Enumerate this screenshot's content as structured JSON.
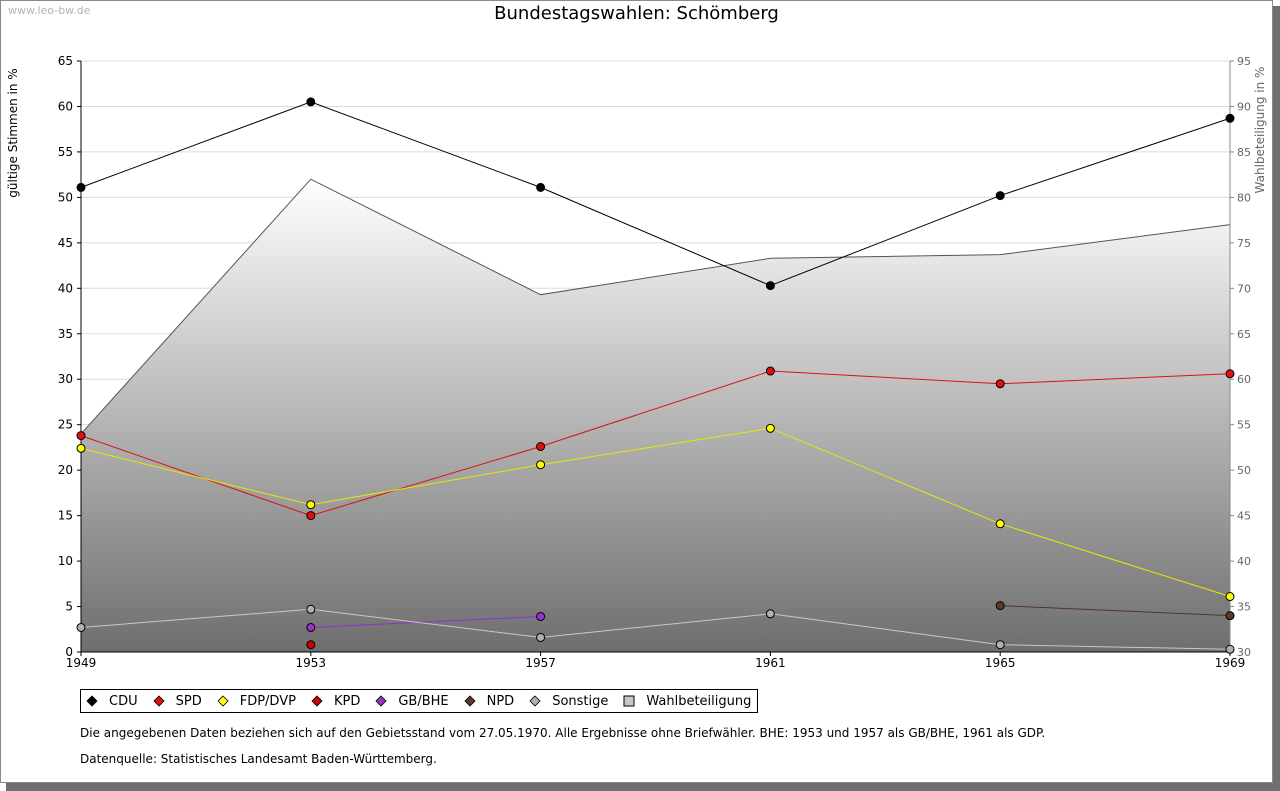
{
  "watermark": "www.leo-bw.de",
  "chart_data": {
    "type": "line",
    "title": "Bundestagswahlen: Schömberg",
    "ylabel": "gültige Stimmen in %",
    "y2label": "Wahlbeteiligung in %",
    "x": [
      "1949",
      "1953",
      "1957",
      "1961",
      "1965",
      "1969"
    ],
    "ylim": [
      0,
      65
    ],
    "yticks": [
      0,
      5,
      10,
      15,
      20,
      25,
      30,
      35,
      40,
      45,
      50,
      55,
      60,
      65
    ],
    "y2lim": [
      30,
      95
    ],
    "y2ticks": [
      30,
      35,
      40,
      45,
      50,
      55,
      60,
      65,
      70,
      75,
      80,
      85,
      90,
      95
    ],
    "series": [
      {
        "name": "CDU",
        "color": "#000000",
        "marker": "#000000",
        "values": [
          51.1,
          60.5,
          51.1,
          40.3,
          50.2,
          58.7
        ]
      },
      {
        "name": "SPD",
        "color": "#dd1111",
        "marker": "#dd1111",
        "values": [
          23.8,
          15.0,
          22.6,
          30.9,
          29.5,
          30.6
        ]
      },
      {
        "name": "FDP/DVP",
        "color": "#e8e800",
        "marker": "#ffff00",
        "values": [
          22.4,
          16.2,
          20.6,
          24.6,
          14.1,
          6.1
        ]
      },
      {
        "name": "KPD",
        "color": "#cc0000",
        "marker": "#cc0000",
        "values": [
          null,
          0.8,
          null,
          null,
          null,
          null
        ]
      },
      {
        "name": "GB/BHE",
        "color": "#8833cc",
        "marker": "#9933cc",
        "values": [
          null,
          2.7,
          3.9,
          null,
          null,
          null
        ]
      },
      {
        "name": "NPD",
        "color": "#553322",
        "marker": "#5a3a2a",
        "values": [
          null,
          null,
          null,
          null,
          5.1,
          4.0
        ]
      },
      {
        "name": "Sonstige",
        "color": "#c8c8c8",
        "marker": "#b0b0b0",
        "values": [
          2.7,
          4.7,
          1.6,
          4.2,
          0.8,
          0.3
        ]
      }
    ],
    "turnout": {
      "name": "Wahlbeteiligung",
      "values": [
        54.0,
        82.0,
        69.3,
        73.3,
        73.7,
        77.0
      ]
    }
  },
  "notes": [
    "Die angegebenen Daten beziehen sich auf den Gebietsstand vom 27.05.1970. Alle Ergebnisse ohne Briefwähler. BHE: 1953 und 1957 als GB/BHE, 1961 als GDP.",
    "Datenquelle: Statistisches Landesamt Baden-Württemberg."
  ]
}
